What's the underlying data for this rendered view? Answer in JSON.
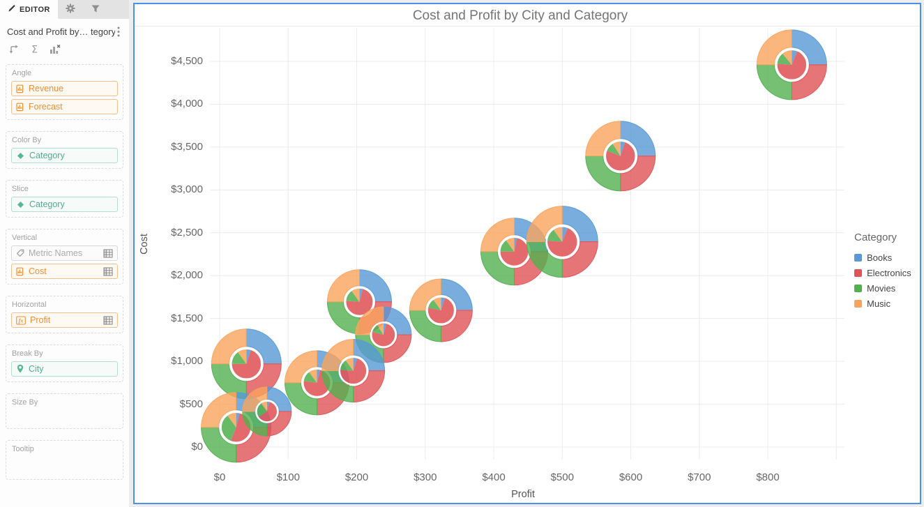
{
  "sidebar": {
    "tabs": [
      {
        "label": "EDITOR",
        "icon": "pencil-icon",
        "active": true
      },
      {
        "label": "",
        "icon": "gear-icon",
        "active": false
      },
      {
        "label": "",
        "icon": "filter-icon",
        "active": false
      }
    ],
    "widget_title": "Cost and Profit by… tegory",
    "toolbar": [
      {
        "icon": "swap-axes-icon"
      },
      {
        "icon": "sigma-icon"
      },
      {
        "icon": "clear-chart-icon"
      }
    ],
    "sections": [
      {
        "label": "Angle",
        "chips": [
          {
            "label": "Revenue",
            "style": "orange",
            "icon": "metric-icon"
          },
          {
            "label": "Forecast",
            "style": "orange",
            "icon": "metric-icon"
          }
        ]
      },
      {
        "label": "Color By",
        "chips": [
          {
            "label": "Category",
            "style": "green",
            "icon": "diamond-icon"
          }
        ]
      },
      {
        "label": "Slice",
        "chips": [
          {
            "label": "Category",
            "style": "green",
            "icon": "diamond-icon"
          }
        ]
      },
      {
        "label": "Vertical",
        "chips": [
          {
            "label": "Metric Names",
            "style": "gray",
            "icon": "tag-icon",
            "trailing_icon": "table-icon"
          },
          {
            "label": "Cost",
            "style": "orange",
            "icon": "metric-icon",
            "trailing_icon": "table-icon"
          }
        ]
      },
      {
        "label": "Horizontal",
        "chips": [
          {
            "label": "Profit",
            "style": "orange",
            "icon": "fx-icon",
            "trailing_icon": "table-icon"
          }
        ]
      },
      {
        "label": "Break By",
        "chips": [
          {
            "label": "City",
            "style": "green",
            "icon": "pin-icon"
          }
        ]
      },
      {
        "label": "Size By",
        "chips": []
      },
      {
        "label": "Tooltip",
        "chips": []
      }
    ]
  },
  "chart_data": {
    "type": "scatter",
    "marker": "pie-donut",
    "title": "Cost and Profit by City and Category",
    "xlabel": "Profit",
    "ylabel": "Cost",
    "xlim": [
      0,
      800
    ],
    "ylim": [
      0,
      4500
    ],
    "grid": true,
    "x_ticks": [
      {
        "v": 0,
        "label": "$0"
      },
      {
        "v": 100,
        "label": "$100"
      },
      {
        "v": 200,
        "label": "$200"
      },
      {
        "v": 300,
        "label": "$300"
      },
      {
        "v": 400,
        "label": "$400"
      },
      {
        "v": 500,
        "label": "$500"
      },
      {
        "v": 600,
        "label": "$600"
      },
      {
        "v": 700,
        "label": "$700"
      },
      {
        "v": 800,
        "label": "$800"
      }
    ],
    "grid_x_extra": [
      900
    ],
    "y_ticks": [
      {
        "v": 0,
        "label": "$0"
      },
      {
        "v": 500,
        "label": "$500"
      },
      {
        "v": 1000,
        "label": "$1,000"
      },
      {
        "v": 1500,
        "label": "$1,500"
      },
      {
        "v": 2000,
        "label": "$2,000"
      },
      {
        "v": 2500,
        "label": "$2,500"
      },
      {
        "v": 3000,
        "label": "$3,000"
      },
      {
        "v": 3500,
        "label": "$3,500"
      },
      {
        "v": 4000,
        "label": "$4,000"
      },
      {
        "v": 4500,
        "label": "$4,500"
      }
    ],
    "legend": {
      "title": "Category",
      "position": "right",
      "entries": [
        {
          "label": "Books",
          "color": "#5899D6"
        },
        {
          "label": "Electronics",
          "color": "#E05356"
        },
        {
          "label": "Movies",
          "color": "#52B04F"
        },
        {
          "label": "Music",
          "color": "#F9A45C"
        }
      ]
    },
    "categories": [
      "Books",
      "Electronics",
      "Movies",
      "Music"
    ],
    "outer_ring_metric": "Revenue",
    "inner_pie_metric": "Forecast",
    "points": [
      {
        "profit": 835,
        "cost": 4460,
        "radius": 50,
        "outer_split": [
          0.25,
          0.25,
          0.25,
          0.25
        ],
        "inner_split": [
          0.06,
          0.7,
          0.13,
          0.11
        ]
      },
      {
        "profit": 585,
        "cost": 3395,
        "radius": 50,
        "outer_split": [
          0.25,
          0.25,
          0.25,
          0.25
        ],
        "inner_split": [
          0.05,
          0.76,
          0.1,
          0.09
        ]
      },
      {
        "profit": 430,
        "cost": 2280,
        "radius": 48,
        "outer_split": [
          0.25,
          0.25,
          0.25,
          0.25
        ],
        "inner_split": [
          0.03,
          0.72,
          0.15,
          0.1
        ]
      },
      {
        "profit": 500,
        "cost": 2395,
        "radius": 51,
        "outer_split": [
          0.25,
          0.25,
          0.25,
          0.25
        ],
        "inner_split": [
          0.06,
          0.7,
          0.14,
          0.1
        ]
      },
      {
        "profit": 204,
        "cost": 1695,
        "radius": 46,
        "outer_split": [
          0.25,
          0.25,
          0.25,
          0.25
        ],
        "inner_split": [
          0.04,
          0.72,
          0.14,
          0.1
        ]
      },
      {
        "profit": 323,
        "cost": 1595,
        "radius": 45,
        "outer_split": [
          0.25,
          0.25,
          0.25,
          0.25
        ],
        "inner_split": [
          0.05,
          0.73,
          0.12,
          0.1
        ]
      },
      {
        "profit": 239,
        "cost": 1310,
        "radius": 40,
        "outer_split": [
          0.25,
          0.25,
          0.25,
          0.25
        ],
        "inner_split": [
          0.04,
          0.75,
          0.12,
          0.09
        ]
      },
      {
        "profit": 39,
        "cost": 970,
        "radius": 50,
        "outer_split": [
          0.25,
          0.25,
          0.25,
          0.25
        ],
        "inner_split": [
          0.05,
          0.7,
          0.15,
          0.1
        ]
      },
      {
        "profit": 142,
        "cost": 750,
        "radius": 46,
        "outer_split": [
          0.25,
          0.25,
          0.25,
          0.25
        ],
        "inner_split": [
          0.04,
          0.73,
          0.13,
          0.1
        ]
      },
      {
        "profit": 195,
        "cost": 890,
        "radius": 45,
        "outer_split": [
          0.25,
          0.25,
          0.25,
          0.25
        ],
        "inner_split": [
          0.05,
          0.71,
          0.14,
          0.1
        ]
      },
      {
        "profit": 24,
        "cost": 230,
        "radius": 50,
        "outer_split": [
          0.25,
          0.25,
          0.25,
          0.25
        ],
        "inner_split": [
          0.04,
          0.52,
          0.34,
          0.1
        ]
      },
      {
        "profit": 69,
        "cost": 415,
        "radius": 35,
        "outer_split": [
          0.25,
          0.25,
          0.25,
          0.25
        ],
        "inner_split": [
          0.04,
          0.62,
          0.24,
          0.1
        ]
      }
    ]
  }
}
